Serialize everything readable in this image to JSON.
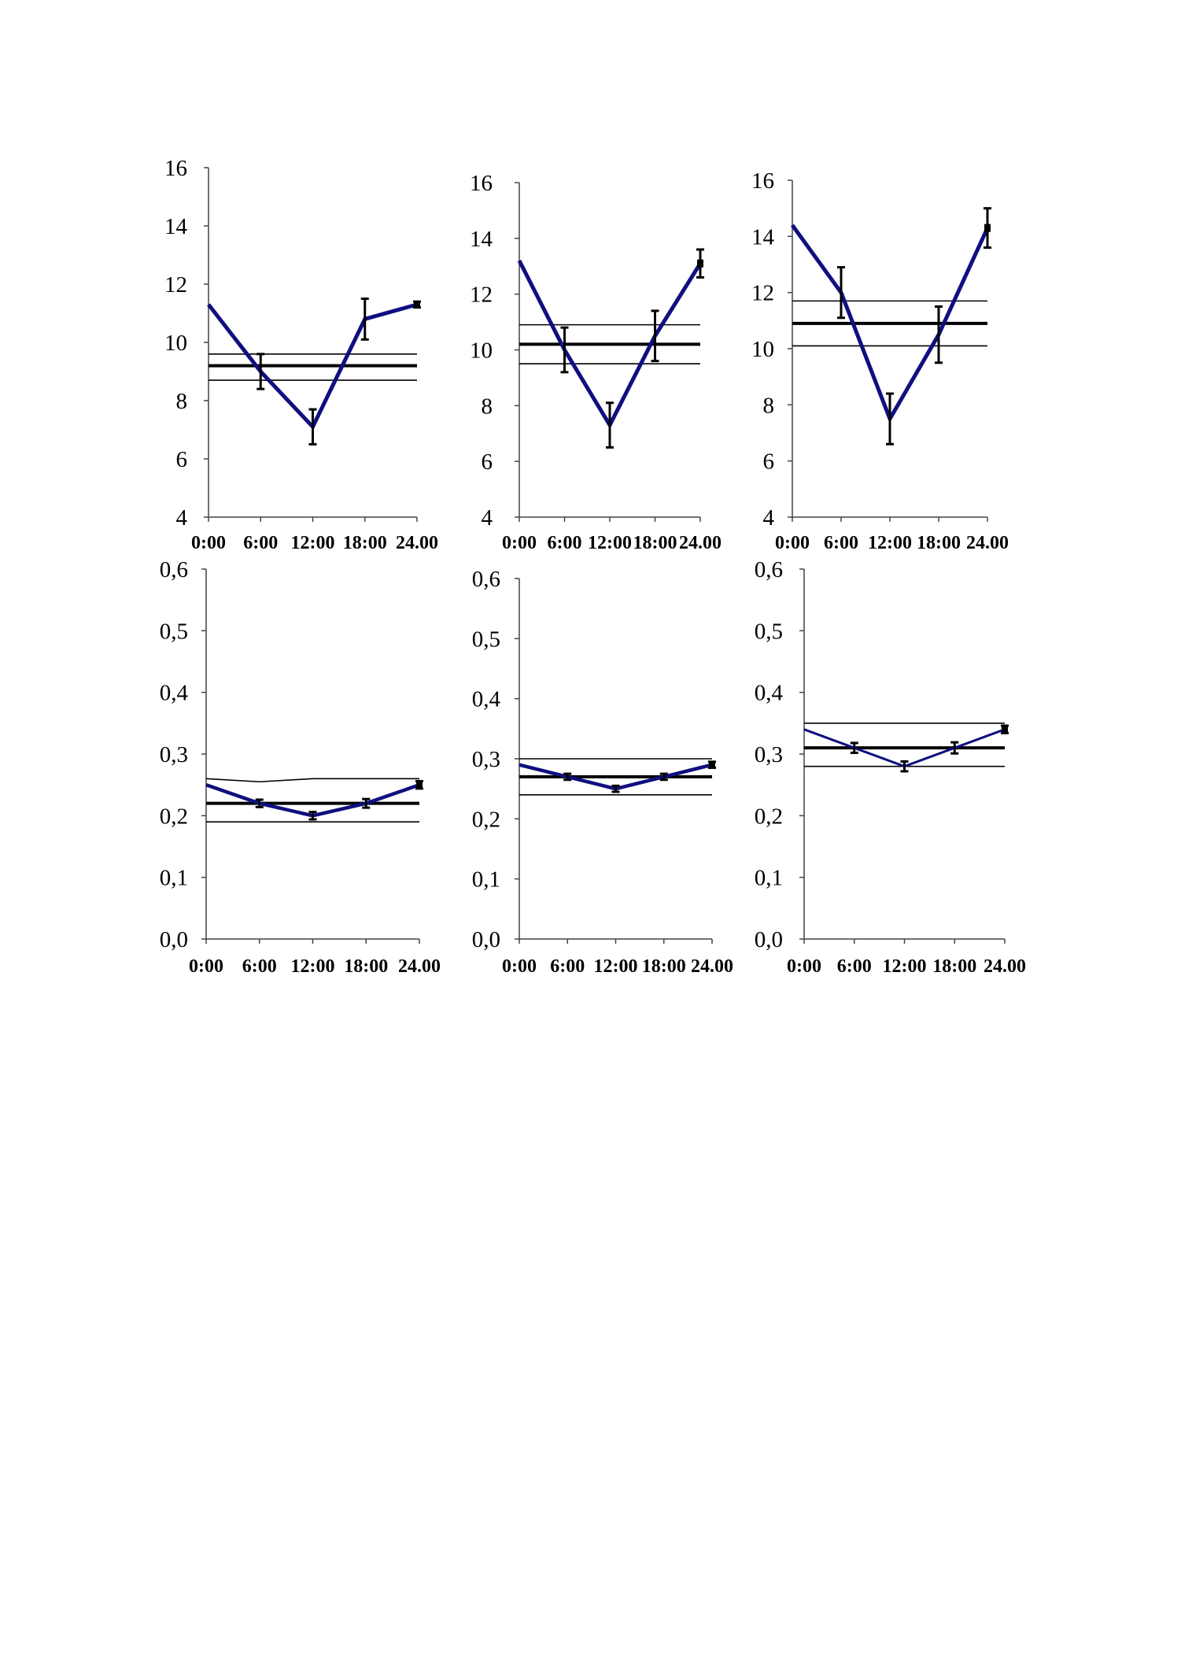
{
  "colors": {
    "series": "#0f0f7f",
    "ref": "#000000",
    "axis": "#444444"
  },
  "chart_data": [
    {
      "type": "line",
      "x": [
        "0:00",
        "6:00",
        "12:00",
        "18:00",
        "24.00"
      ],
      "ylim": [
        4,
        16
      ],
      "yticks": [
        "4",
        "6",
        "8",
        "10",
        "12",
        "14",
        "16"
      ],
      "series": [
        {
          "values": [
            11.3,
            9.0,
            7.1,
            10.8,
            11.3
          ],
          "errors": [
            0,
            0.6,
            0.6,
            0.7,
            0.1
          ]
        }
      ],
      "reference_lines": [
        {
          "role": "mean",
          "values": [
            9.2,
            9.2,
            9.2,
            9.2,
            9.2
          ]
        },
        {
          "role": "upper",
          "values": [
            9.6,
            9.6,
            9.6,
            9.6,
            9.6
          ]
        },
        {
          "role": "lower",
          "values": [
            8.7,
            8.7,
            8.7,
            8.7,
            8.7
          ]
        }
      ]
    },
    {
      "type": "line",
      "x": [
        "0:00",
        "6:00",
        "12:00",
        "18:00",
        "24.00"
      ],
      "ylim": [
        4,
        16
      ],
      "yticks": [
        "4",
        "6",
        "8",
        "10",
        "12",
        "14",
        "16"
      ],
      "series": [
        {
          "values": [
            13.2,
            10.0,
            7.3,
            10.5,
            13.1
          ],
          "errors": [
            0,
            0.8,
            0.8,
            0.9,
            0.5
          ]
        }
      ],
      "reference_lines": [
        {
          "role": "mean",
          "values": [
            10.2,
            10.2,
            10.2,
            10.2,
            10.2
          ]
        },
        {
          "role": "upper",
          "values": [
            10.9,
            10.9,
            10.9,
            10.9,
            10.9
          ]
        },
        {
          "role": "lower",
          "values": [
            9.5,
            9.5,
            9.5,
            9.5,
            9.5
          ]
        }
      ]
    },
    {
      "type": "line",
      "x": [
        "0:00",
        "6:00",
        "12:00",
        "18:00",
        "24.00"
      ],
      "ylim": [
        4,
        16
      ],
      "yticks": [
        "4",
        "6",
        "8",
        "10",
        "12",
        "14",
        "16"
      ],
      "series": [
        {
          "values": [
            14.4,
            12.0,
            7.5,
            10.5,
            14.3
          ],
          "errors": [
            0,
            0.9,
            0.9,
            1.0,
            0.7
          ]
        }
      ],
      "reference_lines": [
        {
          "role": "mean",
          "values": [
            10.9,
            10.9,
            10.9,
            10.9,
            10.9
          ]
        },
        {
          "role": "upper",
          "values": [
            11.7,
            11.7,
            11.7,
            11.7,
            11.7
          ]
        },
        {
          "role": "lower",
          "values": [
            10.1,
            10.1,
            10.1,
            10.1,
            10.1
          ]
        }
      ]
    },
    {
      "type": "line",
      "x": [
        "0:00",
        "6:00",
        "12:00",
        "18:00",
        "24.00"
      ],
      "ylim": [
        0,
        0.6
      ],
      "yticks": [
        "0,0",
        "0,1",
        "0,2",
        "0,3",
        "0,4",
        "0,5",
        "0,6"
      ],
      "series": [
        {
          "values": [
            0.25,
            0.22,
            0.2,
            0.22,
            0.25
          ],
          "errors": [
            0,
            0.006,
            0.006,
            0.007,
            0.006
          ]
        }
      ],
      "reference_lines": [
        {
          "role": "mean",
          "values": [
            0.22,
            0.22,
            0.22,
            0.22,
            0.22
          ]
        },
        {
          "role": "upper",
          "values": [
            0.26,
            0.255,
            0.26,
            0.26,
            0.26
          ]
        },
        {
          "role": "lower",
          "values": [
            0.19,
            0.19,
            0.19,
            0.19,
            0.19
          ]
        }
      ]
    },
    {
      "type": "line",
      "x": [
        "0:00",
        "6:00",
        "12:00",
        "18:00",
        "24.00"
      ],
      "ylim": [
        0,
        0.6
      ],
      "yticks": [
        "0,0",
        "0,1",
        "0,2",
        "0,3",
        "0,4",
        "0,5",
        "0,6"
      ],
      "series": [
        {
          "values": [
            0.29,
            0.27,
            0.25,
            0.27,
            0.29
          ],
          "errors": [
            0,
            0.005,
            0.005,
            0.005,
            0.005
          ]
        }
      ],
      "reference_lines": [
        {
          "role": "mean",
          "values": [
            0.27,
            0.27,
            0.27,
            0.27,
            0.27
          ]
        },
        {
          "role": "upper",
          "values": [
            0.3,
            0.3,
            0.3,
            0.3,
            0.3
          ]
        },
        {
          "role": "lower",
          "values": [
            0.24,
            0.24,
            0.24,
            0.24,
            0.24
          ]
        }
      ]
    },
    {
      "type": "line",
      "x": [
        "0:00",
        "6:00",
        "12:00",
        "18:00",
        "24.00"
      ],
      "ylim": [
        0,
        0.6
      ],
      "yticks": [
        "0,0",
        "0,1",
        "0,2",
        "0,3",
        "0,4",
        "0,5",
        "0,6"
      ],
      "series": [
        {
          "values": [
            0.34,
            0.31,
            0.28,
            0.31,
            0.34
          ],
          "errors": [
            0,
            0.008,
            0.008,
            0.009,
            0.006
          ]
        }
      ],
      "reference_lines": [
        {
          "role": "mean",
          "values": [
            0.31,
            0.31,
            0.31,
            0.31,
            0.31
          ]
        },
        {
          "role": "upper",
          "values": [
            0.35,
            0.35,
            0.35,
            0.35,
            0.35
          ]
        },
        {
          "role": "lower",
          "values": [
            0.28,
            0.28,
            0.28,
            0.28,
            0.28
          ]
        }
      ]
    }
  ]
}
